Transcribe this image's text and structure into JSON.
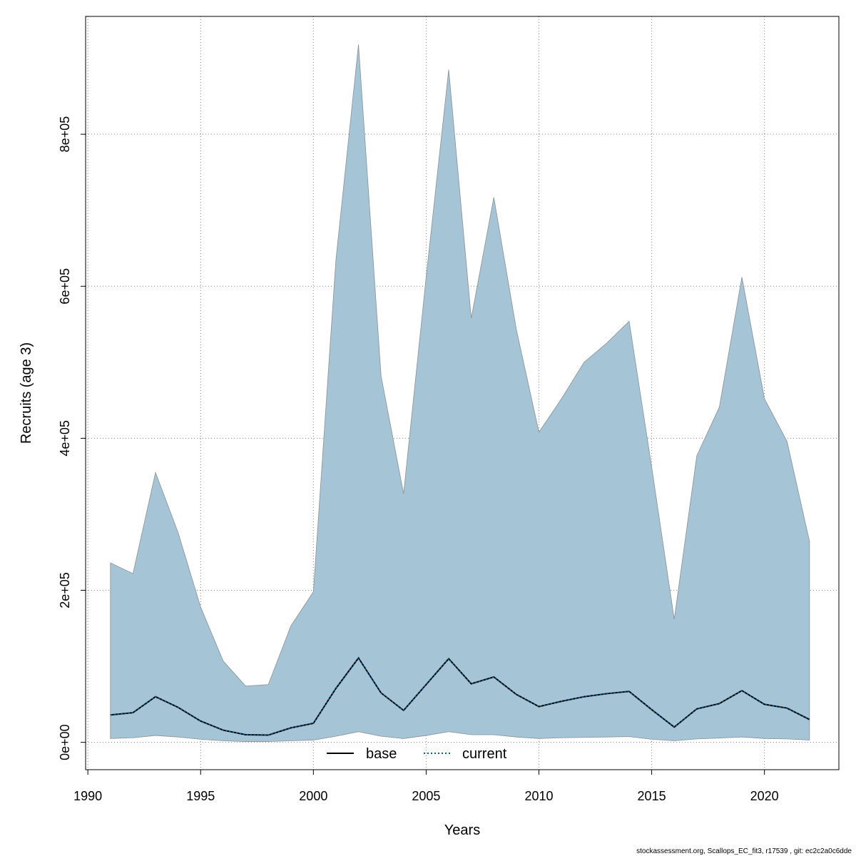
{
  "chart_data": {
    "type": "area",
    "title": "",
    "xlabel": "Years",
    "ylabel": "Recruits (age 3)",
    "xlim": [
      1989.9,
      2023.3
    ],
    "ylim": [
      -36000,
      955000
    ],
    "x_ticks": [
      1990,
      1995,
      2000,
      2005,
      2010,
      2015,
      2020
    ],
    "x_tick_labels": [
      "1990",
      "1995",
      "2000",
      "2005",
      "2010",
      "2015",
      "2020"
    ],
    "y_ticks": [
      0,
      200000,
      400000,
      600000,
      800000
    ],
    "y_tick_labels": [
      "0e+00",
      "2e+05",
      "4e+05",
      "6e+05",
      "8e+05"
    ],
    "grid": true,
    "x": [
      1991,
      1992,
      1993,
      1994,
      1995,
      1996,
      1997,
      1998,
      1999,
      2000,
      2001,
      2002,
      2003,
      2004,
      2005,
      2006,
      2007,
      2008,
      2009,
      2010,
      2011,
      2012,
      2013,
      2014,
      2015,
      2016,
      2017,
      2018,
      2019,
      2020,
      2021,
      2022
    ],
    "band": {
      "upper": [
        236000,
        222000,
        355000,
        276000,
        178000,
        107000,
        74000,
        76000,
        153000,
        198000,
        635000,
        918000,
        482000,
        327000,
        612000,
        885000,
        558000,
        717000,
        543000,
        408000,
        452000,
        500000,
        525000,
        554000,
        362000,
        162000,
        377000,
        441000,
        612000,
        452000,
        396000,
        264000
      ],
      "lower": [
        5000,
        6000,
        9000,
        7000,
        4000,
        2000,
        1000,
        1000,
        2000,
        3000,
        8000,
        14000,
        8000,
        5000,
        9000,
        14000,
        10000,
        10000,
        7000,
        5000,
        6000,
        6500,
        7000,
        7500,
        4000,
        2000,
        4500,
        5500,
        7000,
        5000,
        4500,
        3000
      ],
      "color": "#a5c4d5",
      "edge_color": "#8a9299"
    },
    "series": [
      {
        "name": "base",
        "style": "solid",
        "color": "#000000",
        "values": [
          36000,
          39000,
          60000,
          46000,
          28000,
          16000,
          10000,
          9500,
          19000,
          25000,
          71000,
          111000,
          65000,
          42000,
          76000,
          110000,
          77000,
          86000,
          63000,
          47000,
          54000,
          60000,
          64000,
          67000,
          43000,
          20000,
          44000,
          51000,
          68000,
          50000,
          45000,
          30000
        ]
      },
      {
        "name": "current",
        "style": "dotted",
        "color": "#0b5d8a",
        "values": [
          36000,
          39000,
          60000,
          46000,
          28000,
          16000,
          10000,
          9500,
          19000,
          25000,
          71000,
          111000,
          65000,
          42000,
          76000,
          110000,
          77000,
          86000,
          63000,
          47000,
          54000,
          60000,
          64000,
          67000,
          43000,
          20000,
          44000,
          51000,
          68000,
          50000,
          45000,
          30000
        ]
      }
    ],
    "legend_position": "bottom-center"
  },
  "footer_text": "stockassessment.org, Scallops_EC_fit3, r17539 , git: ec2c2a0c6dde"
}
